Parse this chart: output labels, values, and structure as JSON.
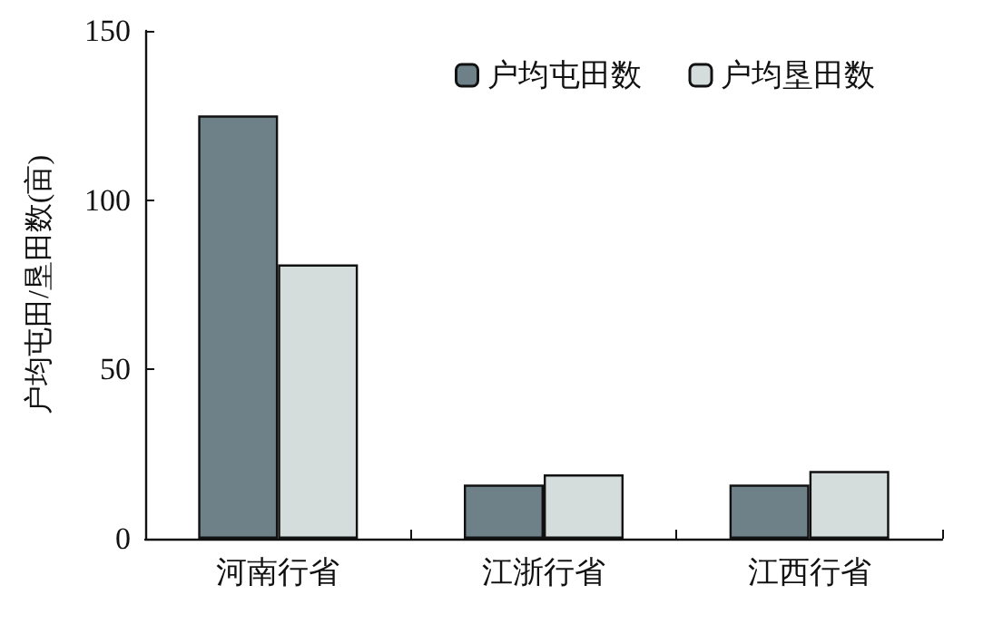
{
  "chart_data": {
    "type": "bar",
    "ylabel": "户均屯田/垦田数(亩)",
    "categories": [
      "河南行省",
      "江浙行省",
      "江西行省"
    ],
    "series": [
      {
        "name": "户均屯田数",
        "color": "#6e8088",
        "values": [
          125,
          16,
          16
        ]
      },
      {
        "name": "户均垦田数",
        "color": "#d5dcdc",
        "values": [
          81,
          19,
          20
        ]
      }
    ],
    "ylim": [
      0,
      150
    ],
    "yticks": [
      0,
      50,
      100,
      150
    ],
    "grid": false,
    "legend": "top right"
  }
}
